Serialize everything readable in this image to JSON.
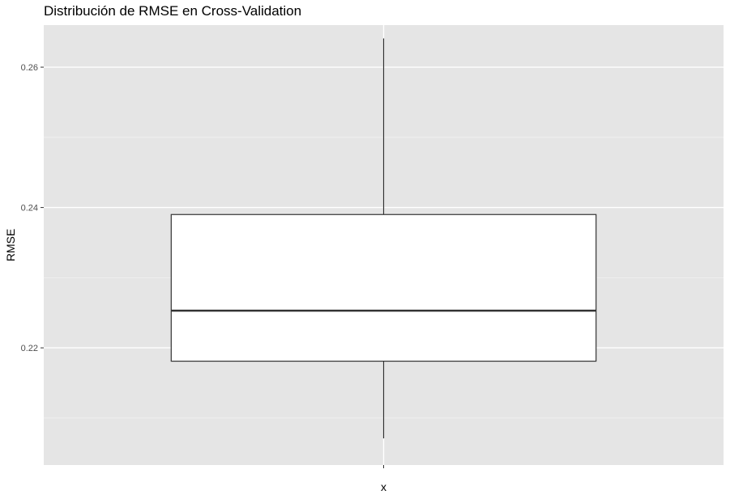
{
  "chart_data": {
    "type": "boxplot",
    "title": "Distribución de RMSE en Cross-Validation",
    "xlabel": "x",
    "ylabel": "RMSE",
    "categories": [
      ""
    ],
    "ylim": [
      0.2033,
      0.266
    ],
    "y_ticks": [
      0.22,
      0.24,
      0.26
    ],
    "y_tick_labels": [
      "0.22",
      "0.24",
      "0.26"
    ],
    "grid": true,
    "boxes": [
      {
        "category": "",
        "whisker_low": 0.2071,
        "q1": 0.2181,
        "median": 0.2253,
        "q3": 0.239,
        "whisker_high": 0.2641
      }
    ],
    "colors": {
      "panel_background": "#e5e5e5",
      "grid_major": "#ffffff",
      "grid_minor": "#f2f2f2",
      "box_fill": "#ffffff",
      "box_line": "#333333"
    }
  }
}
